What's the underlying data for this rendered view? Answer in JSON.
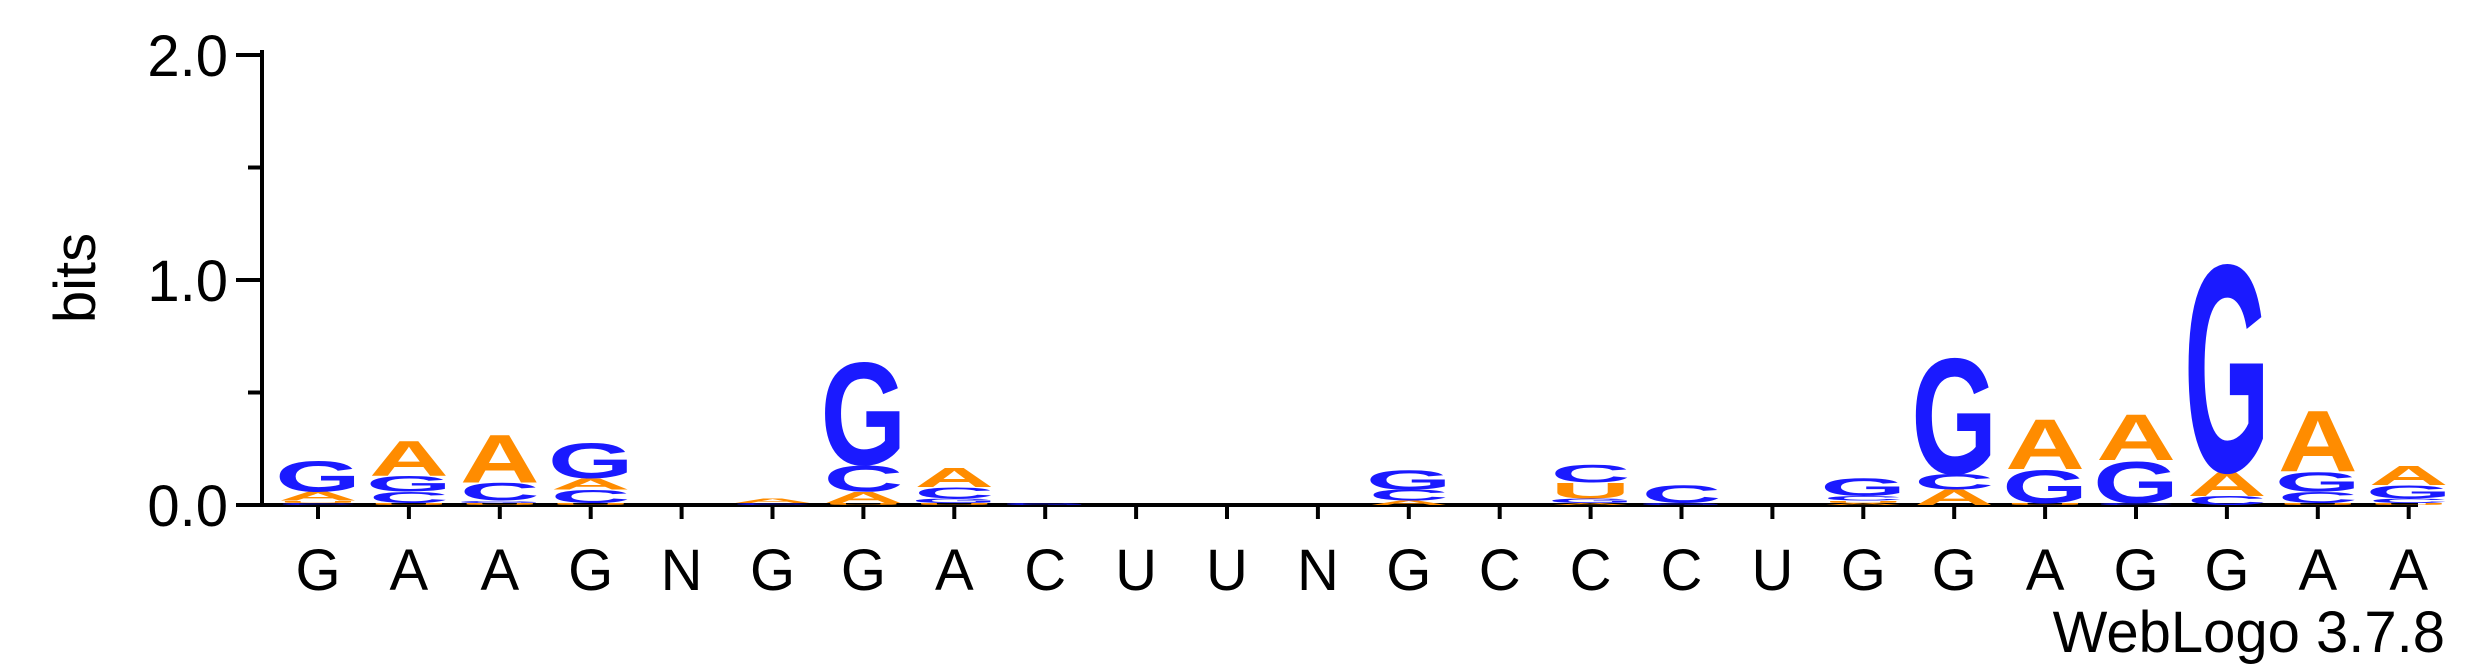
{
  "chart_data": {
    "type": "sequence-logo",
    "ylabel": "bits",
    "ylim": [
      0,
      2.0
    ],
    "yticks": [
      "0.0",
      "1.0",
      "2.0"
    ],
    "credit": "WebLogo 3.7.8",
    "colors": {
      "G": "#1a1aff",
      "C": "#1a1aff",
      "A": "#ff8c00",
      "U": "#ff8c00",
      "N": "#000000"
    },
    "positions": [
      {
        "label": "G",
        "stack": [
          [
            "C",
            0.01
          ],
          [
            "U",
            0.01
          ],
          [
            "A",
            0.04
          ],
          [
            "G",
            0.14
          ]
        ]
      },
      {
        "label": "A",
        "stack": [
          [
            "U",
            0.01
          ],
          [
            "C",
            0.05
          ],
          [
            "G",
            0.07
          ],
          [
            "A",
            0.16
          ]
        ]
      },
      {
        "label": "A",
        "stack": [
          [
            "U",
            0.01
          ],
          [
            "G",
            0.01
          ],
          [
            "C",
            0.08
          ],
          [
            "A",
            0.22
          ]
        ]
      },
      {
        "label": "G",
        "stack": [
          [
            "U",
            0.01
          ],
          [
            "C",
            0.06
          ],
          [
            "A",
            0.05
          ],
          [
            "G",
            0.16
          ]
        ]
      },
      {
        "label": "N",
        "stack": []
      },
      {
        "label": "G",
        "stack": [
          [
            "C",
            0.01
          ],
          [
            "A",
            0.02
          ]
        ]
      },
      {
        "label": "G",
        "stack": [
          [
            "U",
            0.01
          ],
          [
            "A",
            0.05
          ],
          [
            "C",
            0.12
          ],
          [
            "G",
            0.47
          ]
        ]
      },
      {
        "label": "A",
        "stack": [
          [
            "U",
            0.01
          ],
          [
            "G",
            0.02
          ],
          [
            "C",
            0.05
          ],
          [
            "A",
            0.09
          ]
        ]
      },
      {
        "label": "C",
        "stack": [
          [
            "G",
            0.01
          ]
        ]
      },
      {
        "label": "U",
        "stack": []
      },
      {
        "label": "U",
        "stack": []
      },
      {
        "label": "N",
        "stack": []
      },
      {
        "label": "G",
        "stack": [
          [
            "A",
            0.02
          ],
          [
            "C",
            0.05
          ],
          [
            "G",
            0.09
          ]
        ]
      },
      {
        "label": "C",
        "stack": []
      },
      {
        "label": "C",
        "stack": [
          [
            "A",
            0.01
          ],
          [
            "G",
            0.02
          ],
          [
            "U",
            0.07
          ],
          [
            "C",
            0.08
          ]
        ]
      },
      {
        "label": "C",
        "stack": [
          [
            "G",
            0.01
          ],
          [
            "C",
            0.08
          ]
        ]
      },
      {
        "label": "U",
        "stack": []
      },
      {
        "label": "G",
        "stack": [
          [
            "A",
            0.01
          ],
          [
            "U",
            0.01
          ],
          [
            "C",
            0.02
          ],
          [
            "G",
            0.08
          ]
        ]
      },
      {
        "label": "G",
        "stack": [
          [
            "A",
            0.07
          ],
          [
            "C",
            0.07
          ],
          [
            "G",
            0.53
          ]
        ]
      },
      {
        "label": "A",
        "stack": [
          [
            "U",
            0.01
          ],
          [
            "G",
            0.15
          ],
          [
            "A",
            0.23
          ]
        ]
      },
      {
        "label": "G",
        "stack": [
          [
            "C",
            0.01
          ],
          [
            "G",
            0.19
          ],
          [
            "A",
            0.21
          ]
        ]
      },
      {
        "label": "G",
        "stack": [
          [
            "C",
            0.04
          ],
          [
            "A",
            0.11
          ],
          [
            "G",
            0.95
          ]
        ]
      },
      {
        "label": "A",
        "stack": [
          [
            "U",
            0.01
          ],
          [
            "C",
            0.05
          ],
          [
            "G",
            0.09
          ],
          [
            "A",
            0.28
          ]
        ]
      },
      {
        "label": "A",
        "stack": [
          [
            "U",
            0.01
          ],
          [
            "C",
            0.02
          ],
          [
            "G",
            0.06
          ],
          [
            "A",
            0.09
          ]
        ]
      }
    ]
  }
}
